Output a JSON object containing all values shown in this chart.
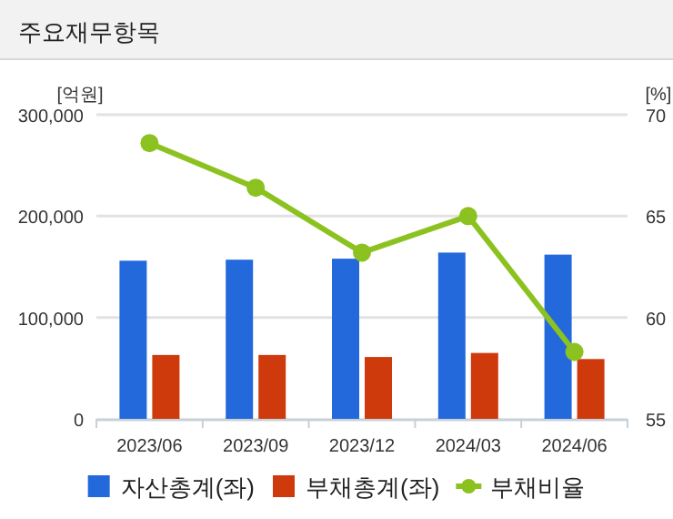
{
  "chart_data": {
    "type": "bar",
    "title": "주요재무항목",
    "ylabel": "[억원]",
    "y2label": "[%]",
    "categories": [
      "2023/06",
      "2023/09",
      "2023/12",
      "2024/03",
      "2024/06"
    ],
    "series": [
      {
        "name": "자산총계(좌)",
        "color": "#2369dc",
        "values": [
          156000,
          157000,
          158000,
          164000,
          162000
        ]
      },
      {
        "name": "부채총계(좌)",
        "color": "#cf3a0c",
        "values": [
          63000,
          63000,
          61000,
          65000,
          59000
        ]
      },
      {
        "name": "부채비율",
        "type": "line",
        "axis": "y2",
        "color": "#8cc220",
        "values": [
          68.6,
          66.4,
          63.2,
          65.0,
          58.3
        ]
      }
    ],
    "ylim": [
      0,
      300000
    ],
    "yticks": [
      {
        "value": 0,
        "label": "0"
      },
      {
        "value": 100000,
        "label": "100,000"
      },
      {
        "value": 200000,
        "label": "200,000"
      },
      {
        "value": 300000,
        "label": "300,000"
      }
    ],
    "y2lim": [
      55,
      70
    ],
    "y2ticks": [
      55,
      60,
      65,
      70
    ],
    "grid": "y",
    "legend": "bottom",
    "marker": "circle",
    "line_style": "solid"
  }
}
